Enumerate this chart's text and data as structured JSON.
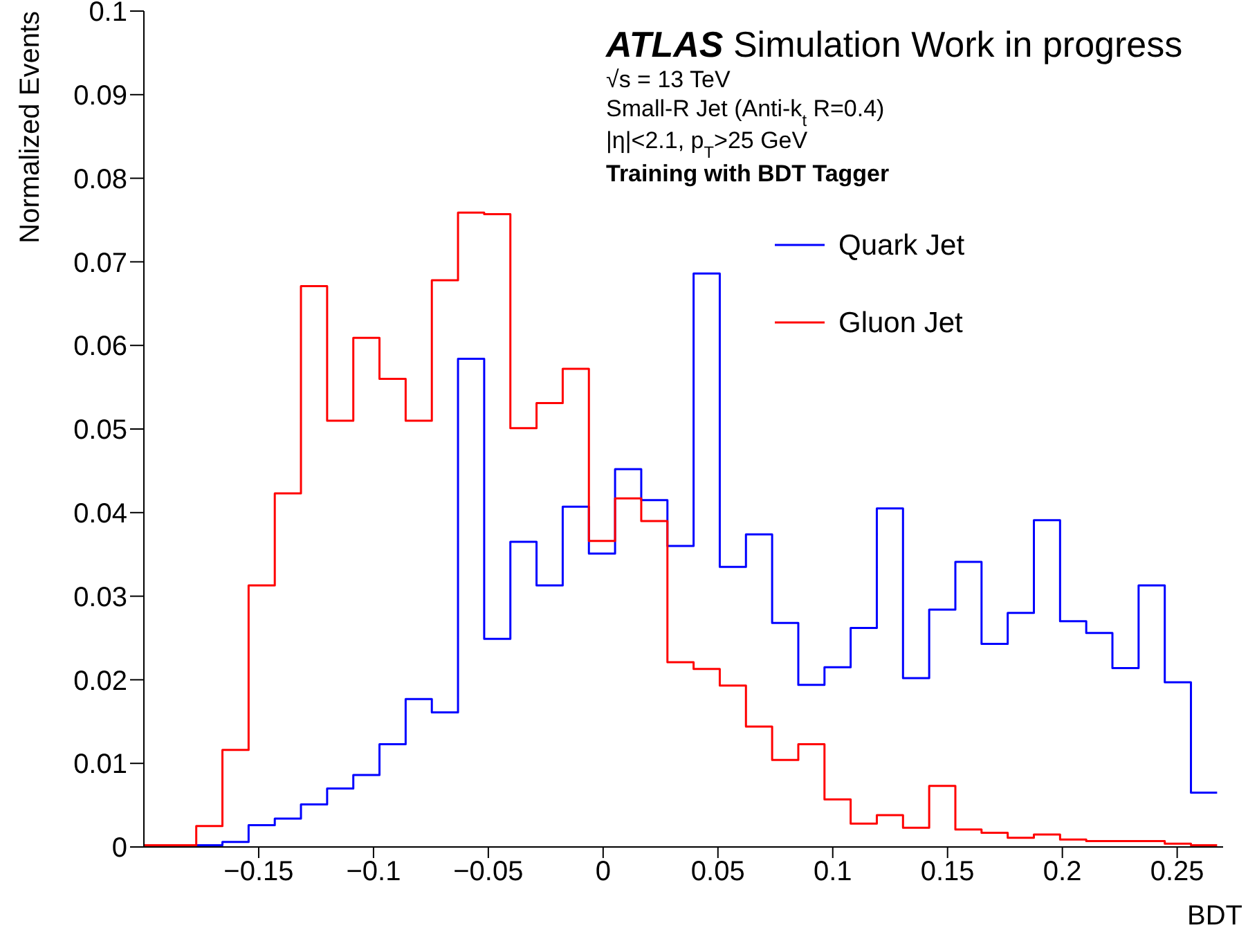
{
  "chart_data": {
    "type": "histogram",
    "xlabel": "BDT",
    "ylabel": "Normalized Events",
    "annotations": [
      "ATLAS Simulation Work in progress",
      "√s = 13 TeV",
      "Small-R Jet (Anti-k$_{t}$ R=0.4)",
      "|η|<2.1, p$_{T}$>25 GeV",
      "Training with BDT Tagger"
    ],
    "bins": [
      -0.2,
      -0.1886,
      -0.1772,
      -0.1658,
      -0.1544,
      -0.143,
      -0.1316,
      -0.1202,
      -0.1088,
      -0.0974,
      -0.086,
      -0.0746,
      -0.0632,
      -0.0518,
      -0.0404,
      -0.029,
      -0.0176,
      -0.0062,
      0.0052,
      0.0166,
      0.028,
      0.0394,
      0.0508,
      0.0622,
      0.0736,
      0.085,
      0.0964,
      0.1078,
      0.1192,
      0.1306,
      0.142,
      0.1534,
      0.1648,
      0.1762,
      0.1876,
      0.199,
      0.2104,
      0.2218,
      0.2332,
      0.2446,
      0.256,
      0.2674
    ],
    "series": [
      {
        "name": "Quark Jet",
        "color": "#0000ff",
        "values": [
          0,
          0,
          0.0002,
          0.0006,
          0.0026,
          0.0034,
          0.0051,
          0.007,
          0.0086,
          0.0123,
          0.0177,
          0.0161,
          0.0584,
          0.0249,
          0.0365,
          0.0313,
          0.0407,
          0.0351,
          0.0452,
          0.0415,
          0.036,
          0.0686,
          0.0335,
          0.0374,
          0.0268,
          0.0194,
          0.0215,
          0.0262,
          0.0405,
          0.0202,
          0.0284,
          0.0341,
          0.0243,
          0.028,
          0.0391,
          0.027,
          0.0256,
          0.0214,
          0.0313,
          0.0197,
          0.0065
        ]
      },
      {
        "name": "Gluon Jet",
        "color": "#ff0000",
        "values": [
          0.0002,
          0.0002,
          0.0025,
          0.0116,
          0.0313,
          0.0423,
          0.0671,
          0.051,
          0.0609,
          0.056,
          0.051,
          0.0678,
          0.0759,
          0.0757,
          0.0501,
          0.0531,
          0.0572,
          0.0366,
          0.0417,
          0.039,
          0.0221,
          0.0213,
          0.0193,
          0.0144,
          0.0104,
          0.0123,
          0.0057,
          0.0028,
          0.0038,
          0.0023,
          0.0073,
          0.0021,
          0.0017,
          0.0011,
          0.0015,
          0.0009,
          0.0007,
          0.0007,
          0.0007,
          0.0004,
          0.0002
        ]
      }
    ],
    "xlim": [
      -0.2,
      0.27
    ],
    "xticks": [
      -0.15,
      -0.1,
      -0.05,
      0,
      0.05,
      0.1,
      0.15,
      0.2,
      0.25
    ],
    "ylim": [
      0,
      0.1
    ],
    "yticks": [
      0,
      0.01,
      0.02,
      0.03,
      0.04,
      0.05,
      0.06,
      0.07,
      0.08,
      0.09,
      0.1
    ],
    "legend": "top right",
    "grid": false
  }
}
